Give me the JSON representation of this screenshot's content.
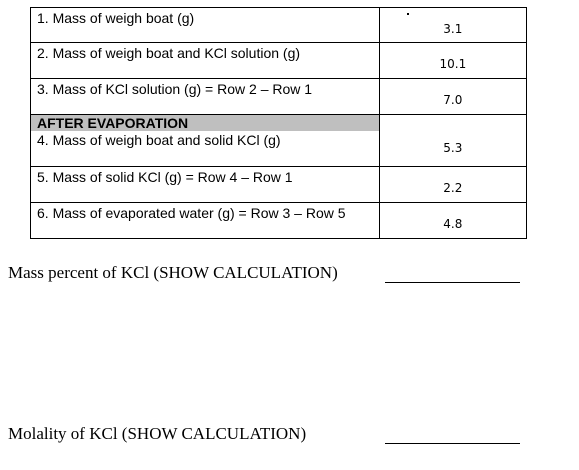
{
  "table": {
    "rows": [
      {
        "label": "1. Mass of weigh boat (g)",
        "value": "3.1"
      },
      {
        "label": "2. Mass of weigh boat and KCl solution (g)",
        "value": "10.1"
      },
      {
        "label": "3. Mass of KCl solution (g) = Row 2 – Row 1",
        "value": "7.0"
      }
    ],
    "section_header": "AFTER EVAPORATION",
    "after_rows": [
      {
        "label": "4. Mass of weigh boat and solid KCl (g)",
        "value": "5.3"
      },
      {
        "label": "5. Mass of solid KCl (g) = Row 4 – Row 1",
        "value": "2.2"
      },
      {
        "label": "6. Mass of evaporated water (g) = Row 3 – Row 5",
        "value": "4.8"
      }
    ]
  },
  "calculations": {
    "mass_percent_label": "Mass percent of KCl (SHOW CALCULATION)",
    "molality_label": "Molality of KCl  (SHOW CALCULATION)"
  }
}
